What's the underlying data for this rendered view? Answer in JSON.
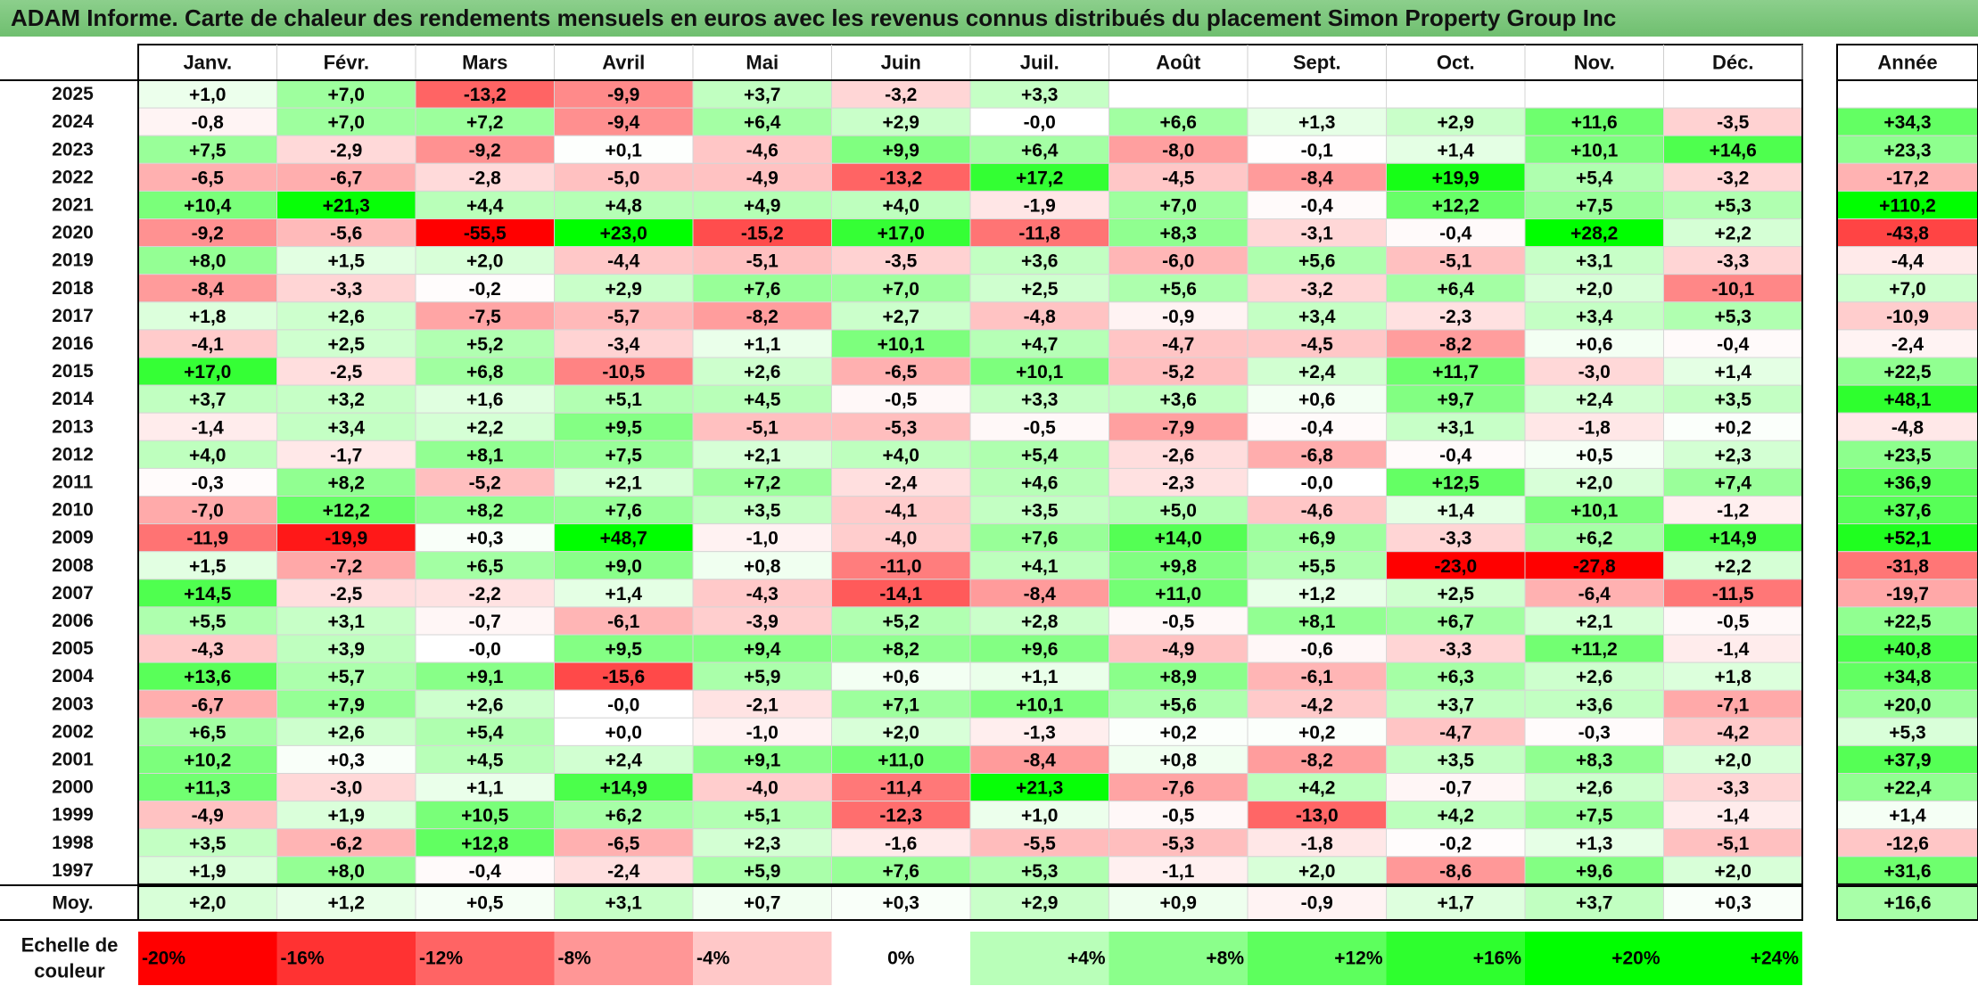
{
  "title": "ADAM Informe. Carte de chaleur des rendements mensuels en euros avec les revenus connus distribués du placement Simon Property Group Inc",
  "colors": {
    "positive_max": "#00ff00",
    "negative_max": "#ff0000",
    "neutral": "#ffffff",
    "title_bg": "#7cc87c"
  },
  "chart_data": {
    "type": "heatmap",
    "columns": [
      "Janv.",
      "Févr.",
      "Mars",
      "Avril",
      "Mai",
      "Juin",
      "Juil.",
      "Août",
      "Sept.",
      "Oct.",
      "Nov.",
      "Déc."
    ],
    "annual_header": "Année",
    "rows": [
      {
        "year": "2025",
        "values": [
          "+1,0",
          "+7,0",
          "-13,2",
          "-9,9",
          "+3,7",
          "-3,2",
          "+3,3",
          "",
          "",
          "",
          "",
          ""
        ],
        "annual": ""
      },
      {
        "year": "2024",
        "values": [
          "-0,8",
          "+7,0",
          "+7,2",
          "-9,4",
          "+6,4",
          "+2,9",
          "-0,0",
          "+6,6",
          "+1,3",
          "+2,9",
          "+11,6",
          "-3,5"
        ],
        "annual": "+34,3"
      },
      {
        "year": "2023",
        "values": [
          "+7,5",
          "-2,9",
          "-9,2",
          "+0,1",
          "-4,6",
          "+9,9",
          "+6,4",
          "-8,0",
          "-0,1",
          "+1,4",
          "+10,1",
          "+14,6"
        ],
        "annual": "+23,3"
      },
      {
        "year": "2022",
        "values": [
          "-6,5",
          "-6,7",
          "-2,8",
          "-5,0",
          "-4,9",
          "-13,2",
          "+17,2",
          "-4,5",
          "-8,4",
          "+19,9",
          "+5,4",
          "-3,2"
        ],
        "annual": "-17,2"
      },
      {
        "year": "2021",
        "values": [
          "+10,4",
          "+21,3",
          "+4,4",
          "+4,8",
          "+4,9",
          "+4,0",
          "-1,9",
          "+7,0",
          "-0,4",
          "+12,2",
          "+7,5",
          "+5,3"
        ],
        "annual": "+110,2"
      },
      {
        "year": "2020",
        "values": [
          "-9,2",
          "-5,6",
          "-55,5",
          "+23,0",
          "-15,2",
          "+17,0",
          "-11,8",
          "+8,3",
          "-3,1",
          "-0,4",
          "+28,2",
          "+2,2"
        ],
        "annual": "-43,8"
      },
      {
        "year": "2019",
        "values": [
          "+8,0",
          "+1,5",
          "+2,0",
          "-4,4",
          "-5,1",
          "-3,5",
          "+3,6",
          "-6,0",
          "+5,6",
          "-5,1",
          "+3,1",
          "-3,3"
        ],
        "annual": "-4,4"
      },
      {
        "year": "2018",
        "values": [
          "-8,4",
          "-3,3",
          "-0,2",
          "+2,9",
          "+7,6",
          "+7,0",
          "+2,5",
          "+5,6",
          "-3,2",
          "+6,4",
          "+2,0",
          "-10,1"
        ],
        "annual": "+7,0"
      },
      {
        "year": "2017",
        "values": [
          "+1,8",
          "+2,6",
          "-7,5",
          "-5,7",
          "-8,2",
          "+2,7",
          "-4,8",
          "-0,9",
          "+3,4",
          "-2,3",
          "+3,4",
          "+5,3"
        ],
        "annual": "-10,9"
      },
      {
        "year": "2016",
        "values": [
          "-4,1",
          "+2,5",
          "+5,2",
          "-3,4",
          "+1,1",
          "+10,1",
          "+4,7",
          "-4,7",
          "-4,5",
          "-8,2",
          "+0,6",
          "-0,4"
        ],
        "annual": "-2,4"
      },
      {
        "year": "2015",
        "values": [
          "+17,0",
          "-2,5",
          "+6,8",
          "-10,5",
          "+2,6",
          "-6,5",
          "+10,1",
          "-5,2",
          "+2,4",
          "+11,7",
          "-3,0",
          "+1,4"
        ],
        "annual": "+22,5"
      },
      {
        "year": "2014",
        "values": [
          "+3,7",
          "+3,2",
          "+1,6",
          "+5,1",
          "+4,5",
          "-0,5",
          "+3,3",
          "+3,6",
          "+0,6",
          "+9,7",
          "+2,4",
          "+3,5"
        ],
        "annual": "+48,1"
      },
      {
        "year": "2013",
        "values": [
          "-1,4",
          "+3,4",
          "+2,2",
          "+9,5",
          "-5,1",
          "-5,3",
          "-0,5",
          "-7,9",
          "-0,4",
          "+3,1",
          "-1,8",
          "+0,2"
        ],
        "annual": "-4,8"
      },
      {
        "year": "2012",
        "values": [
          "+4,0",
          "-1,7",
          "+8,1",
          "+7,5",
          "+2,1",
          "+4,0",
          "+5,4",
          "-2,6",
          "-6,8",
          "-0,4",
          "+0,5",
          "+2,3"
        ],
        "annual": "+23,5"
      },
      {
        "year": "2011",
        "values": [
          "-0,3",
          "+8,2",
          "-5,2",
          "+2,1",
          "+7,2",
          "-2,4",
          "+4,6",
          "-2,3",
          "-0,0",
          "+12,5",
          "+2,0",
          "+7,4"
        ],
        "annual": "+36,9"
      },
      {
        "year": "2010",
        "values": [
          "-7,0",
          "+12,2",
          "+8,2",
          "+7,6",
          "+3,5",
          "-4,1",
          "+3,5",
          "+5,0",
          "-4,6",
          "+1,4",
          "+10,1",
          "-1,2"
        ],
        "annual": "+37,6"
      },
      {
        "year": "2009",
        "values": [
          "-11,9",
          "-19,9",
          "+0,3",
          "+48,7",
          "-1,0",
          "-4,0",
          "+7,6",
          "+14,0",
          "+6,9",
          "-3,3",
          "+6,2",
          "+14,9"
        ],
        "annual": "+52,1"
      },
      {
        "year": "2008",
        "values": [
          "+1,5",
          "-7,2",
          "+6,5",
          "+9,0",
          "+0,8",
          "-11,0",
          "+4,1",
          "+9,8",
          "+5,5",
          "-23,0",
          "-27,8",
          "+2,2"
        ],
        "annual": "-31,8"
      },
      {
        "year": "2007",
        "values": [
          "+14,5",
          "-2,5",
          "-2,2",
          "+1,4",
          "-4,3",
          "-14,1",
          "-8,4",
          "+11,0",
          "+1,2",
          "+2,5",
          "-6,4",
          "-11,5"
        ],
        "annual": "-19,7"
      },
      {
        "year": "2006",
        "values": [
          "+5,5",
          "+3,1",
          "-0,7",
          "-6,1",
          "-3,9",
          "+5,2",
          "+2,8",
          "-0,5",
          "+8,1",
          "+6,7",
          "+2,1",
          "-0,5"
        ],
        "annual": "+22,5"
      },
      {
        "year": "2005",
        "values": [
          "-4,3",
          "+3,9",
          "-0,0",
          "+9,5",
          "+9,4",
          "+8,2",
          "+9,6",
          "-4,9",
          "-0,6",
          "-3,3",
          "+11,2",
          "-1,4"
        ],
        "annual": "+40,8"
      },
      {
        "year": "2004",
        "values": [
          "+13,6",
          "+5,7",
          "+9,1",
          "-15,6",
          "+5,9",
          "+0,6",
          "+1,1",
          "+8,9",
          "-6,1",
          "+6,3",
          "+2,6",
          "+1,8"
        ],
        "annual": "+34,8"
      },
      {
        "year": "2003",
        "values": [
          "-6,7",
          "+7,9",
          "+2,6",
          "-0,0",
          "-2,1",
          "+7,1",
          "+10,1",
          "+5,6",
          "-4,2",
          "+3,7",
          "+3,6",
          "-7,1"
        ],
        "annual": "+20,0"
      },
      {
        "year": "2002",
        "values": [
          "+6,5",
          "+2,6",
          "+5,4",
          "+0,0",
          "-1,0",
          "+2,0",
          "-1,3",
          "+0,2",
          "+0,2",
          "-4,7",
          "-0,3",
          "-4,2"
        ],
        "annual": "+5,3"
      },
      {
        "year": "2001",
        "values": [
          "+10,2",
          "+0,3",
          "+4,5",
          "+2,4",
          "+9,1",
          "+11,0",
          "-8,4",
          "+0,8",
          "-8,2",
          "+3,5",
          "+8,3",
          "+2,0"
        ],
        "annual": "+37,9"
      },
      {
        "year": "2000",
        "values": [
          "+11,3",
          "-3,0",
          "+1,1",
          "+14,9",
          "-4,0",
          "-11,4",
          "+21,3",
          "-7,6",
          "+4,2",
          "-0,7",
          "+2,6",
          "-3,3"
        ],
        "annual": "+22,4"
      },
      {
        "year": "1999",
        "values": [
          "-4,9",
          "+1,9",
          "+10,5",
          "+6,2",
          "+5,1",
          "-12,3",
          "+1,0",
          "-0,5",
          "-13,0",
          "+4,2",
          "+7,5",
          "-1,4"
        ],
        "annual": "+1,4"
      },
      {
        "year": "1998",
        "values": [
          "+3,5",
          "-6,2",
          "+12,8",
          "-6,5",
          "+2,3",
          "-1,6",
          "-5,5",
          "-5,3",
          "-1,8",
          "-0,2",
          "+1,3",
          "-5,1"
        ],
        "annual": "-12,6"
      },
      {
        "year": "1997",
        "values": [
          "+1,9",
          "+8,0",
          "-0,4",
          "-2,4",
          "+5,9",
          "+7,6",
          "+5,3",
          "-1,1",
          "+2,0",
          "-8,6",
          "+9,6",
          "+2,0"
        ],
        "annual": "+31,6"
      }
    ],
    "average": {
      "label": "Moy.",
      "values": [
        "+2,0",
        "+1,2",
        "+0,5",
        "+3,1",
        "+0,7",
        "+0,3",
        "+2,9",
        "+0,9",
        "-0,9",
        "+1,7",
        "+3,7",
        "+0,3"
      ],
      "annual": "+16,6"
    },
    "scale": {
      "label_line1": "Echelle de",
      "label_line2": "couleur",
      "entries": [
        "-20%",
        "-16%",
        "-12%",
        "-8%",
        "-4%",
        "0%",
        "+4%",
        "+8%",
        "+12%",
        "+16%",
        "+20%",
        "+24%"
      ],
      "values": [
        -20,
        -16,
        -12,
        -8,
        -4,
        0,
        4,
        8,
        12,
        16,
        20,
        24
      ]
    }
  }
}
